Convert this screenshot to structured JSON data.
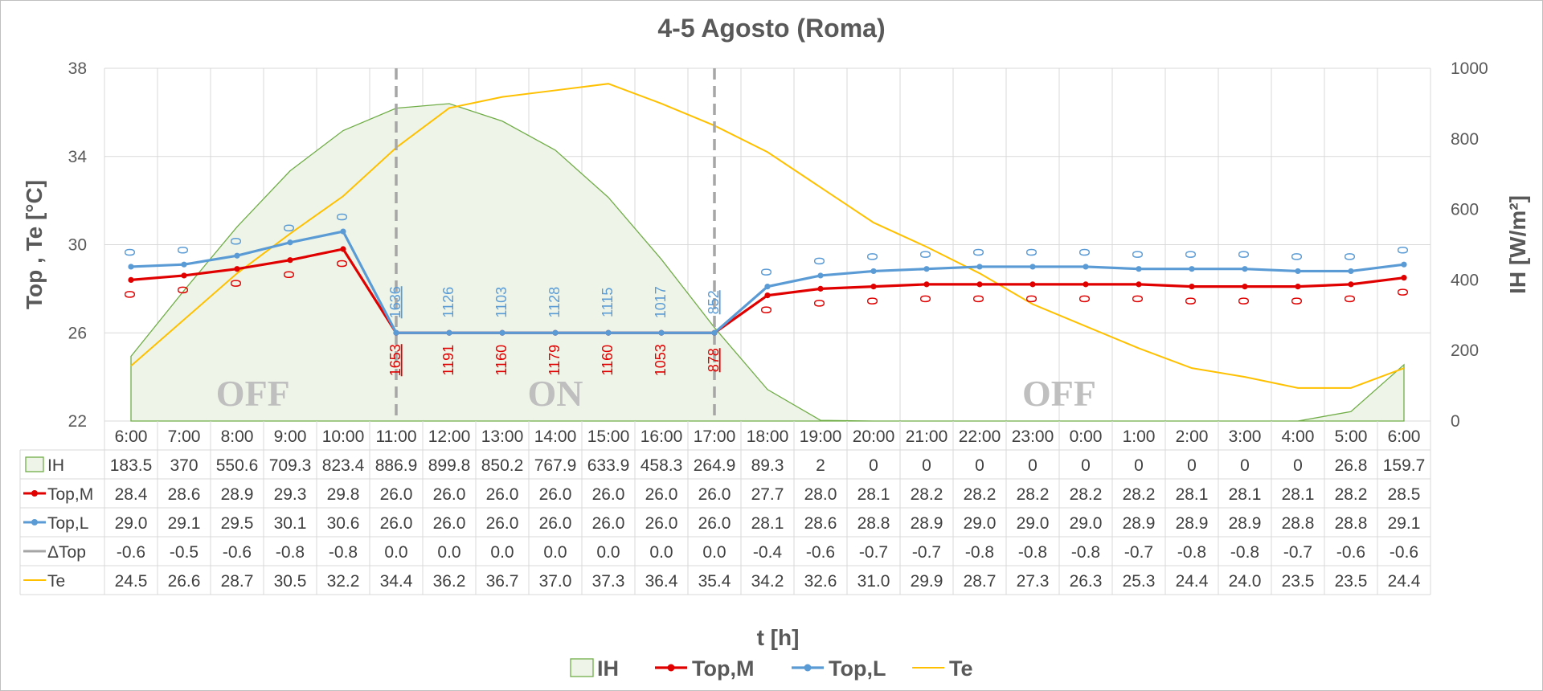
{
  "chart_data": {
    "type": "line",
    "title": "4-5 Agosto (Roma)",
    "xlabel": "t [h]",
    "ylabel_left": "Top , Te [°C]",
    "ylabel_right": "IH [W/m²]",
    "ylim_left": [
      22,
      38
    ],
    "yticks_left": [
      22,
      26,
      30,
      34,
      38
    ],
    "ylim_right": [
      0,
      1000
    ],
    "yticks_right": [
      0,
      200,
      400,
      600,
      800,
      1000
    ],
    "categories": [
      "6:00",
      "7:00",
      "8:00",
      "9:00",
      "10:00",
      "11:00",
      "12:00",
      "13:00",
      "14:00",
      "15:00",
      "16:00",
      "17:00",
      "18:00",
      "19:00",
      "20:00",
      "21:00",
      "22:00",
      "23:00",
      "0:00",
      "1:00",
      "2:00",
      "3:00",
      "4:00",
      "5:00",
      "6:00"
    ],
    "series": [
      {
        "name": "IH",
        "type": "area",
        "axis": "right",
        "color": "#70ad47",
        "fill": "#eef5e8",
        "values": [
          183.5,
          370,
          550.6,
          709.3,
          823.4,
          886.9,
          899.8,
          850.2,
          767.9,
          633.9,
          458.3,
          264.9,
          89.3,
          2,
          0,
          0,
          0,
          0,
          0,
          0,
          0,
          0,
          0,
          26.8,
          159.7
        ]
      },
      {
        "name": "Top,M",
        "type": "line",
        "axis": "left",
        "color": "#e00000",
        "markers": true,
        "values": [
          28.4,
          28.6,
          28.9,
          29.3,
          29.8,
          26.0,
          26.0,
          26.0,
          26.0,
          26.0,
          26.0,
          26.0,
          27.7,
          28.0,
          28.1,
          28.2,
          28.2,
          28.2,
          28.2,
          28.2,
          28.1,
          28.1,
          28.1,
          28.2,
          28.5
        ]
      },
      {
        "name": "Top,L",
        "type": "line",
        "axis": "left",
        "color": "#5b9bd5",
        "markers": true,
        "values": [
          29.0,
          29.1,
          29.5,
          30.1,
          30.6,
          26.0,
          26.0,
          26.0,
          26.0,
          26.0,
          26.0,
          26.0,
          28.1,
          28.6,
          28.8,
          28.9,
          29.0,
          29.0,
          29.0,
          28.9,
          28.9,
          28.9,
          28.8,
          28.8,
          29.1
        ]
      },
      {
        "name": "ΔTop",
        "type": "table-only",
        "color": "#a5a5a5",
        "values": [
          -0.6,
          -0.5,
          -0.6,
          -0.8,
          -0.8,
          0.0,
          0.0,
          0.0,
          0.0,
          0.0,
          0.0,
          0.0,
          -0.4,
          -0.6,
          -0.7,
          -0.7,
          -0.8,
          -0.8,
          -0.8,
          -0.7,
          -0.8,
          -0.8,
          -0.7,
          -0.6,
          -0.6
        ]
      },
      {
        "name": "Te",
        "type": "line",
        "axis": "left",
        "color": "#ffc000",
        "markers": false,
        "values": [
          24.5,
          26.6,
          28.7,
          30.5,
          32.2,
          34.4,
          36.2,
          36.7,
          37.0,
          37.3,
          36.4,
          35.4,
          34.2,
          32.6,
          31.0,
          29.9,
          28.7,
          27.3,
          26.3,
          25.3,
          24.4,
          24.0,
          23.5,
          23.5,
          24.4
        ]
      }
    ],
    "table_display": {
      "IH": [
        "183.5",
        "370",
        "550.6",
        "709.3",
        "823.4",
        "886.9",
        "899.8",
        "850.2",
        "767.9",
        "633.9",
        "458.3",
        "264.9",
        "89.3",
        "2",
        "0",
        "0",
        "0",
        "0",
        "0",
        "0",
        "0",
        "0",
        "0",
        "26.8",
        "159.7"
      ],
      "Top,M": [
        "28.4",
        "28.6",
        "28.9",
        "29.3",
        "29.8",
        "26.0",
        "26.0",
        "26.0",
        "26.0",
        "26.0",
        "26.0",
        "26.0",
        "27.7",
        "28.0",
        "28.1",
        "28.2",
        "28.2",
        "28.2",
        "28.2",
        "28.2",
        "28.1",
        "28.1",
        "28.1",
        "28.2",
        "28.5"
      ],
      "Top,L": [
        "29.0",
        "29.1",
        "29.5",
        "30.1",
        "30.6",
        "26.0",
        "26.0",
        "26.0",
        "26.0",
        "26.0",
        "26.0",
        "26.0",
        "28.1",
        "28.6",
        "28.8",
        "28.9",
        "29.0",
        "29.0",
        "29.0",
        "28.9",
        "28.9",
        "28.9",
        "28.8",
        "28.8",
        "29.1"
      ],
      "ΔTop": [
        "-0.6",
        "-0.5",
        "-0.6",
        "-0.8",
        "-0.8",
        "0.0",
        "0.0",
        "0.0",
        "0.0",
        "0.0",
        "0.0",
        "0.0",
        "-0.4",
        "-0.6",
        "-0.7",
        "-0.7",
        "-0.8",
        "-0.8",
        "-0.8",
        "-0.7",
        "-0.8",
        "-0.8",
        "-0.7",
        "-0.6",
        "-0.6"
      ],
      "Te": [
        "24.5",
        "26.6",
        "28.7",
        "30.5",
        "32.2",
        "34.4",
        "36.2",
        "36.7",
        "37.0",
        "37.3",
        "36.4",
        "35.4",
        "34.2",
        "32.6",
        "31.0",
        "29.9",
        "28.7",
        "27.3",
        "26.3",
        "25.3",
        "24.4",
        "24.0",
        "23.5",
        "23.5",
        "24.4"
      ]
    },
    "annotations_M": [
      "0",
      "0",
      "0",
      "0",
      "0",
      "1653",
      "1191",
      "1160",
      "1179",
      "1160",
      "1053",
      "878",
      "0",
      "0",
      "0",
      "0",
      "0",
      "0",
      "0",
      "0",
      "0",
      "0",
      "0",
      "0",
      "0"
    ],
    "annotations_L": [
      "0",
      "0",
      "0",
      "0",
      "0",
      "1636",
      "1126",
      "1103",
      "1128",
      "1115",
      "1017",
      "852",
      "0",
      "0",
      "0",
      "0",
      "0",
      "0",
      "0",
      "0",
      "0",
      "0",
      "0",
      "0",
      "0"
    ],
    "annotation_underlined_indices": [
      5,
      11
    ],
    "vertical_markers": [
      "11:00",
      "17:00"
    ],
    "region_labels": [
      {
        "text": "OFF",
        "at": 2.3
      },
      {
        "text": "ON",
        "at": 8.0
      },
      {
        "text": "OFF",
        "at": 17.5
      }
    ],
    "grid": true,
    "legend": [
      "IH",
      "Top,M",
      "Top,L",
      "Te"
    ],
    "legend_position": "bottom"
  }
}
